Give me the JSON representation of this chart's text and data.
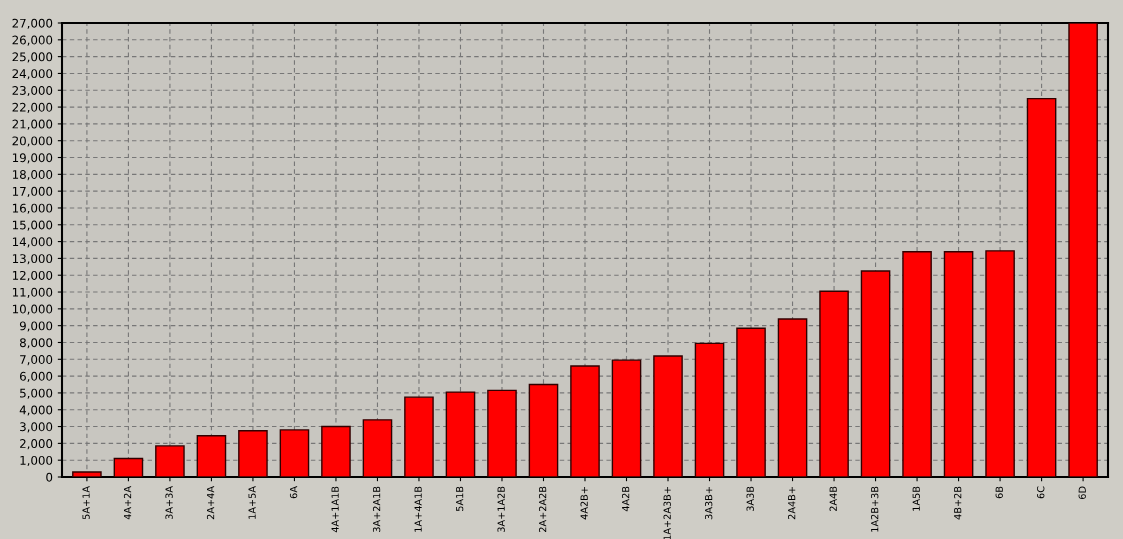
{
  "chart_data": {
    "type": "bar",
    "categories": [
      "5A+1A",
      "4A+2A",
      "3A+3A",
      "2A+4A",
      "1A+5A",
      "6A",
      "4A+1A1B",
      "3A+2A1B",
      "1A+4A1B",
      "5A1B",
      "3A+1A2B",
      "2A+2A2B",
      "4A2B+",
      "4A2B",
      "1A+2A3B+",
      "3A3B+",
      "3A3B",
      "2A4B+",
      "2A4B",
      "1A2B+3B",
      "1A5B",
      "4B+2B",
      "6B",
      "6C",
      "6D"
    ],
    "values": [
      300,
      1100,
      1850,
      2450,
      2750,
      2800,
      3000,
      3400,
      4750,
      5050,
      5150,
      5500,
      6600,
      6950,
      7200,
      7950,
      8850,
      9400,
      11050,
      12250,
      13400,
      13400,
      13450,
      22500,
      27000
    ],
    "color": "#ff0000",
    "ylim": [
      0,
      27000
    ],
    "yticks": [
      {
        "value": 0,
        "label": "0"
      },
      {
        "value": 1000,
        "label": "1,000"
      },
      {
        "value": 2000,
        "label": "2,000"
      },
      {
        "value": 3000,
        "label": "3,000"
      },
      {
        "value": 4000,
        "label": "4,000"
      },
      {
        "value": 5000,
        "label": "5,000"
      },
      {
        "value": 6000,
        "label": "6,000"
      },
      {
        "value": 7000,
        "label": "7,000"
      },
      {
        "value": 8000,
        "label": "8,000"
      },
      {
        "value": 9000,
        "label": "9,000"
      },
      {
        "value": 10000,
        "label": "10,000"
      },
      {
        "value": 11000,
        "label": "11,000"
      },
      {
        "value": 12000,
        "label": "12,000"
      },
      {
        "value": 13000,
        "label": "13,000"
      },
      {
        "value": 14000,
        "label": "14,000"
      },
      {
        "value": 15000,
        "label": "15,000"
      },
      {
        "value": 16000,
        "label": "16,000"
      },
      {
        "value": 17000,
        "label": "17,000"
      },
      {
        "value": 18000,
        "label": "18,000"
      },
      {
        "value": 19000,
        "label": "19,000"
      },
      {
        "value": 20000,
        "label": "20,000"
      },
      {
        "value": 21000,
        "label": "21,000"
      },
      {
        "value": 22000,
        "label": "22,000"
      },
      {
        "value": 23000,
        "label": "23,000"
      },
      {
        "value": 24000,
        "label": "24,000"
      },
      {
        "value": 25000,
        "label": "25,000"
      },
      {
        "value": 26000,
        "label": "26,000"
      },
      {
        "value": 27000,
        "label": "27,000"
      }
    ],
    "grid": true
  }
}
